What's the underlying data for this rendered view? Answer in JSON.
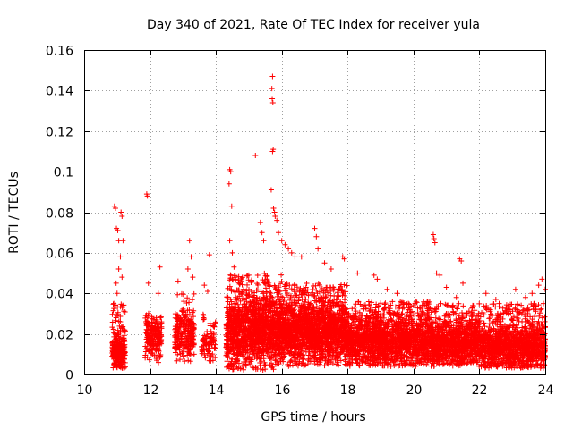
{
  "chart_data": {
    "type": "scatter",
    "title": "Day 340 of 2021, Rate Of TEC Index for receiver yula",
    "xlabel": "GPS time / hours",
    "ylabel": "ROTI / TECUs",
    "xlim": [
      10,
      24
    ],
    "ylim": [
      0,
      0.16
    ],
    "xticks": [
      "10",
      "12",
      "14",
      "16",
      "18",
      "20",
      "22",
      "24"
    ],
    "yticks": [
      "0",
      "0.02",
      "0.04",
      "0.06",
      "0.08",
      "0.1",
      "0.12",
      "0.14",
      "0.16"
    ],
    "xtick_values": [
      10,
      12,
      14,
      16,
      18,
      20,
      22,
      24
    ],
    "ytick_values": [
      0,
      0.02,
      0.04,
      0.06,
      0.08,
      0.1,
      0.12,
      0.14,
      0.16
    ],
    "grid": true,
    "marker": "+",
    "color": "#ff0000",
    "series": [
      {
        "name": "ROTI",
        "points": [
          [
            10.92,
            0.083
          ],
          [
            10.95,
            0.082
          ],
          [
            10.98,
            0.072
          ],
          [
            11.02,
            0.071
          ],
          [
            11.05,
            0.066
          ],
          [
            11.12,
            0.08
          ],
          [
            11.15,
            0.078
          ],
          [
            11.18,
            0.066
          ],
          [
            10.97,
            0.045
          ],
          [
            11.05,
            0.052
          ],
          [
            11.1,
            0.058
          ],
          [
            10.9,
            0.035
          ],
          [
            11.0,
            0.04
          ],
          [
            11.15,
            0.048
          ],
          [
            11.9,
            0.089
          ],
          [
            11.92,
            0.088
          ],
          [
            11.95,
            0.045
          ],
          [
            12.3,
            0.053
          ],
          [
            12.25,
            0.04
          ],
          [
            12.85,
            0.046
          ],
          [
            13.2,
            0.066
          ],
          [
            13.25,
            0.058
          ],
          [
            13.15,
            0.052
          ],
          [
            13.3,
            0.048
          ],
          [
            13.8,
            0.059
          ],
          [
            13.65,
            0.044
          ],
          [
            13.75,
            0.041
          ],
          [
            14.42,
            0.101
          ],
          [
            14.45,
            0.1
          ],
          [
            14.4,
            0.094
          ],
          [
            14.48,
            0.083
          ],
          [
            14.42,
            0.066
          ],
          [
            14.5,
            0.06
          ],
          [
            14.55,
            0.053
          ],
          [
            14.6,
            0.047
          ],
          [
            15.2,
            0.108
          ],
          [
            15.35,
            0.075
          ],
          [
            15.4,
            0.07
          ],
          [
            15.45,
            0.066
          ],
          [
            15.72,
            0.147
          ],
          [
            15.7,
            0.141
          ],
          [
            15.71,
            0.136
          ],
          [
            15.73,
            0.134
          ],
          [
            15.74,
            0.111
          ],
          [
            15.72,
            0.11
          ],
          [
            15.68,
            0.091
          ],
          [
            15.75,
            0.082
          ],
          [
            15.78,
            0.08
          ],
          [
            15.8,
            0.078
          ],
          [
            15.85,
            0.076
          ],
          [
            15.9,
            0.07
          ],
          [
            16.0,
            0.066
          ],
          [
            16.1,
            0.064
          ],
          [
            16.2,
            0.062
          ],
          [
            16.3,
            0.06
          ],
          [
            16.4,
            0.058
          ],
          [
            16.6,
            0.058
          ],
          [
            17.0,
            0.072
          ],
          [
            17.05,
            0.068
          ],
          [
            17.1,
            0.062
          ],
          [
            17.3,
            0.055
          ],
          [
            17.5,
            0.052
          ],
          [
            17.85,
            0.058
          ],
          [
            17.9,
            0.057
          ],
          [
            18.3,
            0.05
          ],
          [
            18.8,
            0.049
          ],
          [
            18.9,
            0.047
          ],
          [
            19.2,
            0.042
          ],
          [
            19.5,
            0.04
          ],
          [
            19.6,
            0.036
          ],
          [
            20.0,
            0.034
          ],
          [
            20.6,
            0.069
          ],
          [
            20.62,
            0.067
          ],
          [
            20.65,
            0.065
          ],
          [
            20.7,
            0.05
          ],
          [
            20.8,
            0.049
          ],
          [
            21.0,
            0.043
          ],
          [
            21.3,
            0.038
          ],
          [
            21.4,
            0.057
          ],
          [
            21.45,
            0.056
          ],
          [
            21.5,
            0.045
          ],
          [
            21.8,
            0.034
          ],
          [
            22.2,
            0.04
          ],
          [
            22.5,
            0.037
          ],
          [
            22.6,
            0.035
          ],
          [
            22.9,
            0.032
          ],
          [
            23.1,
            0.042
          ],
          [
            23.4,
            0.038
          ],
          [
            23.6,
            0.04
          ],
          [
            23.8,
            0.044
          ],
          [
            23.9,
            0.047
          ],
          [
            24.0,
            0.042
          ]
        ]
      }
    ],
    "clusters": [
      {
        "x_start": 10.85,
        "x_end": 11.25,
        "count": 260,
        "y_min": 0.003,
        "y_center": 0.011,
        "y_spread": 0.007,
        "y_tail": 0.035
      },
      {
        "x_start": 11.85,
        "x_end": 12.35,
        "count": 200,
        "y_min": 0.005,
        "y_center": 0.017,
        "y_spread": 0.008,
        "y_tail": 0.03
      },
      {
        "x_start": 12.75,
        "x_end": 13.35,
        "count": 260,
        "y_min": 0.006,
        "y_center": 0.019,
        "y_spread": 0.009,
        "y_tail": 0.04
      },
      {
        "x_start": 13.55,
        "x_end": 14.0,
        "count": 90,
        "y_min": 0.006,
        "y_center": 0.014,
        "y_spread": 0.006,
        "y_tail": 0.03
      },
      {
        "x_start": 14.3,
        "x_end": 16.0,
        "count": 1500,
        "y_min": 0.002,
        "y_center": 0.02,
        "y_spread": 0.011,
        "y_tail": 0.05
      },
      {
        "x_start": 16.0,
        "x_end": 18.0,
        "count": 1700,
        "y_min": 0.004,
        "y_center": 0.02,
        "y_spread": 0.01,
        "y_tail": 0.045
      },
      {
        "x_start": 18.0,
        "x_end": 20.5,
        "count": 1700,
        "y_min": 0.004,
        "y_center": 0.016,
        "y_spread": 0.008,
        "y_tail": 0.036
      },
      {
        "x_start": 20.5,
        "x_end": 22.0,
        "count": 1000,
        "y_min": 0.004,
        "y_center": 0.015,
        "y_spread": 0.008,
        "y_tail": 0.035
      },
      {
        "x_start": 22.0,
        "x_end": 24.0,
        "count": 1300,
        "y_min": 0.003,
        "y_center": 0.013,
        "y_spread": 0.008,
        "y_tail": 0.035
      }
    ]
  }
}
